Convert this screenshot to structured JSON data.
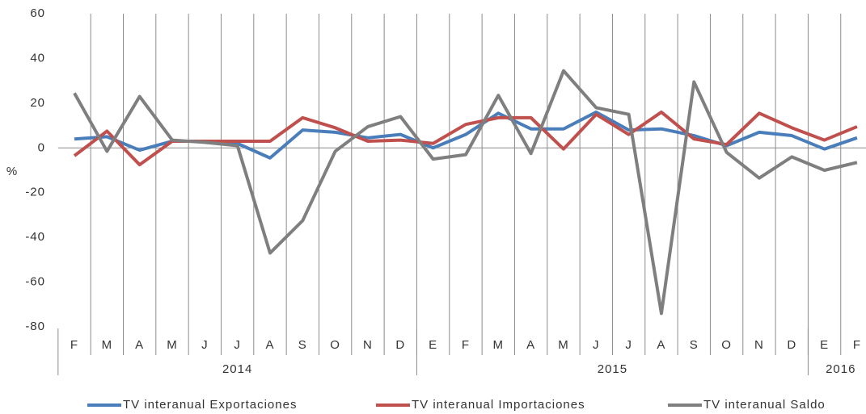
{
  "chart_data": {
    "type": "line",
    "y_label": "%",
    "categories": [
      "F",
      "M",
      "A",
      "M",
      "J",
      "J",
      "A",
      "S",
      "O",
      "N",
      "D",
      "E",
      "F",
      "M",
      "A",
      "M",
      "J",
      "J",
      "A",
      "S",
      "O",
      "N",
      "D",
      "E",
      "F"
    ],
    "groups": [
      {
        "label": "2014",
        "span": 11
      },
      {
        "label": "2015",
        "span": 12
      },
      {
        "label": "2016",
        "span": 2
      }
    ],
    "series": [
      {
        "name": "TV interanual Exportaciones",
        "color": "#4a7ebb",
        "values": [
          4,
          5,
          -1,
          3,
          3,
          2,
          -4.5,
          8,
          7,
          4.5,
          6,
          0,
          6,
          15.5,
          8.5,
          8.5,
          16,
          8,
          8.5,
          5.5,
          1,
          7,
          5.5,
          -0.5,
          4.5
        ]
      },
      {
        "name": "TV interanual Importaciones",
        "color": "#c0504d",
        "values": [
          -3.5,
          7.5,
          -7.5,
          3,
          3,
          3,
          3,
          13.5,
          9,
          3,
          3.5,
          2,
          10.5,
          13.5,
          13.5,
          -0.5,
          15,
          6,
          16,
          4,
          1.5,
          15.5,
          9,
          3.5,
          9.5
        ]
      },
      {
        "name": "TV interanual Saldo",
        "color": "#7f7f7f",
        "values": [
          24.5,
          -1.5,
          23,
          3.5,
          2.5,
          1,
          -47,
          -32.5,
          -1.5,
          9.5,
          14,
          -5,
          -3,
          23.5,
          -2.5,
          34.5,
          18,
          15,
          -74,
          29.5,
          -2,
          -13.5,
          -4,
          -10,
          -6.5
        ]
      }
    ],
    "ylim": [
      -80,
      60
    ],
    "yticks": [
      -80,
      -60,
      -40,
      -20,
      0,
      20,
      40,
      60
    ],
    "grid": true
  }
}
